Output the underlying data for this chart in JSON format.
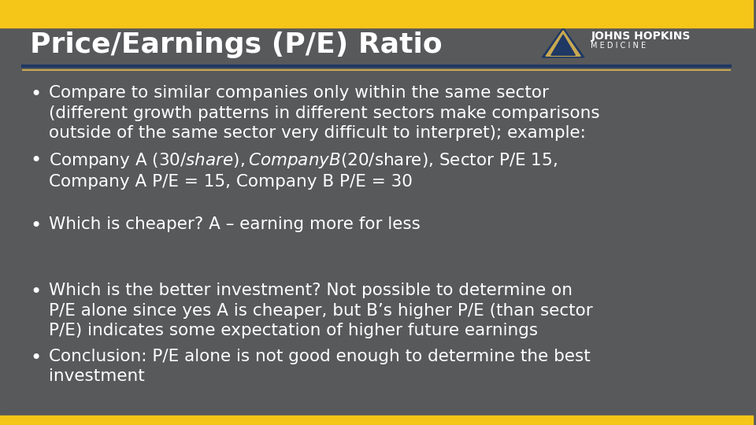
{
  "title": "Price/Earnings (P/E) Ratio",
  "bg_color": "#58595b",
  "top_bar_color": "#f5c518",
  "bottom_bar_color": "#f5c518",
  "divider_color_blue": "#1f3864",
  "divider_color_gold": "#c8a951",
  "title_color": "#ffffff",
  "title_fontsize": 26,
  "text_color": "#ffffff",
  "text_fontsize": 15.5,
  "bullet_points": [
    "Compare to similar companies only within the same sector\n(different growth patterns in different sectors make comparisons\noutside of the same sector very difficult to interpret); example:",
    "Company A ($30/share), Company B ($20/share), Sector P/E 15,\nCompany A P/E = 15, Company B P/E = 30",
    "Which is cheaper? A – earning more for less",
    "Which is the better investment? Not possible to determine on\nP/E alone since yes A is cheaper, but B’s higher P/E (than sector\nP/E) indicates some expectation of higher future earnings",
    "Conclusion: P/E alone is not good enough to determine the best\ninvestment"
  ],
  "logo_text_main": "JOHNS HOPKINS",
  "logo_text_sub": "MEDICINE"
}
